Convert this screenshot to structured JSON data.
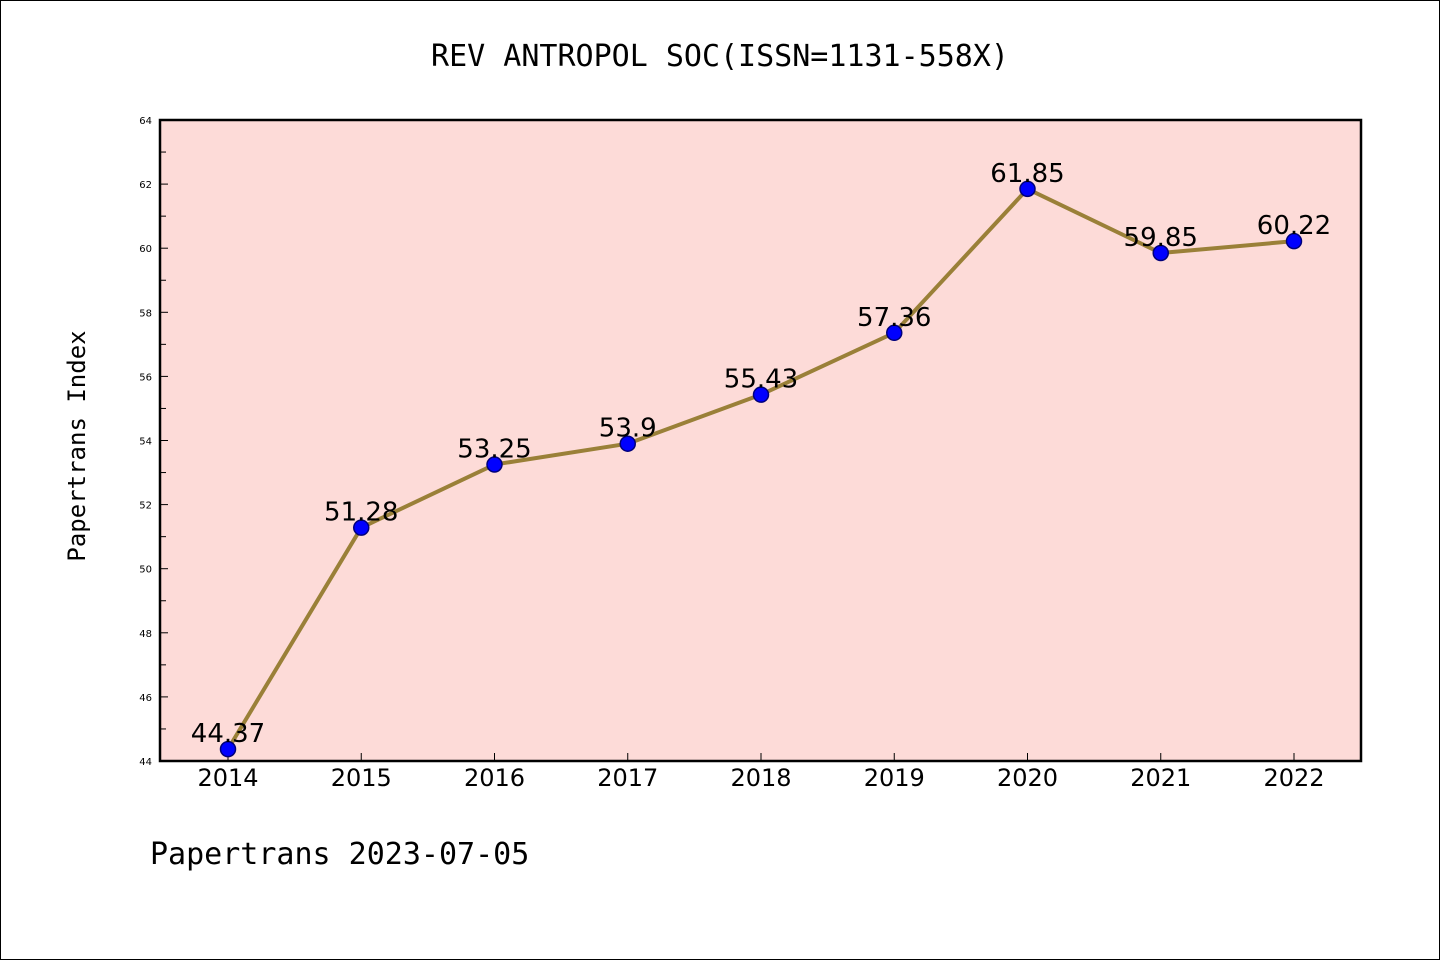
{
  "chart_data": {
    "type": "line",
    "title": "REV ANTROPOL SOC(ISSN=1131-558X)",
    "xlabel": "",
    "ylabel": "Papertrans Index",
    "footer": "Papertrans 2023-07-05",
    "categories": [
      "2014",
      "2015",
      "2016",
      "2017",
      "2018",
      "2019",
      "2020",
      "2021",
      "2022"
    ],
    "series": [
      {
        "values": [
          44.37,
          51.28,
          53.25,
          53.9,
          55.43,
          57.36,
          61.85,
          59.85,
          60.22
        ],
        "labels": [
          "44.37",
          "51.28",
          "53.25",
          "53.9",
          "55.43",
          "57.36",
          "61.85",
          "59.85",
          "60.22"
        ]
      }
    ],
    "ylim": [
      44,
      64
    ],
    "yticks": [
      44,
      46,
      48,
      50,
      52,
      54,
      56,
      58,
      60,
      62,
      64
    ],
    "grid": false,
    "colors": {
      "plot_background": "#fddbd8",
      "line": "#9a8038",
      "marker": "#0000ff",
      "marker_edge": "#00007a"
    }
  }
}
